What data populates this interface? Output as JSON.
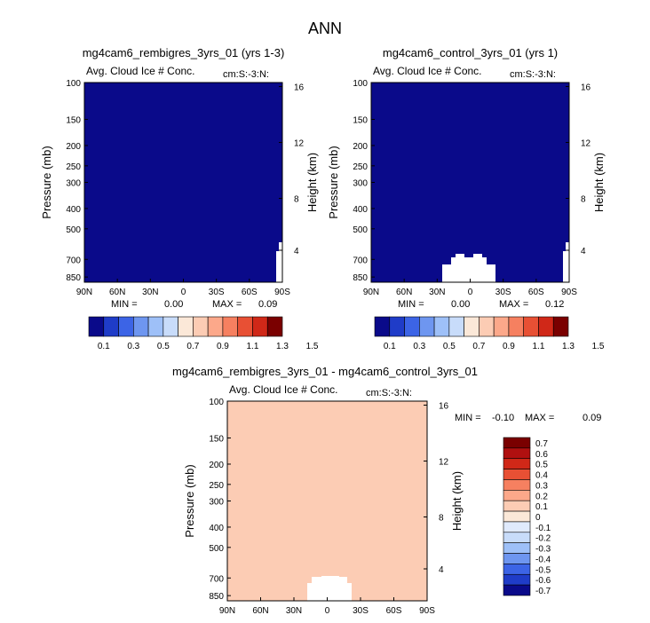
{
  "title": "ANN",
  "colors": {
    "cmap_abs": [
      "#0a0a8a",
      "#1f3cc8",
      "#3c64e6",
      "#6e96f0",
      "#9ec0f8",
      "#c8dcfa",
      "#fbe8d8",
      "#fcccb4",
      "#fca88a",
      "#f68060",
      "#e85034",
      "#d02818",
      "#7a0000"
    ],
    "cmap_diff": [
      "#0a0a8a",
      "#1f3cc8",
      "#3c64e6",
      "#6e96f0",
      "#9ec0f8",
      "#c8dcfa",
      "#fbe8d8",
      "#fcccb4",
      "#fca88a",
      "#f68060",
      "#e85034",
      "#d02818",
      "#7a0000"
    ],
    "white_region": "#ffffff"
  },
  "chart_data": [
    {
      "type": "heatmap",
      "title": "mg4cam6_rembigres_3yrs_01 (yrs 1-3)",
      "subtitle": "Avg. Cloud Ice # Conc.",
      "units": "cm:S:-3:N:",
      "xlabel": "",
      "ylabel": "Pressure (mb)",
      "ylabel_right": "Height (km)",
      "x_ticks": [
        "90N",
        "60N",
        "30N",
        "0",
        "30S",
        "60S",
        "90S"
      ],
      "y_ticks": [
        "100",
        "150",
        "200",
        "250",
        "300",
        "400",
        "500",
        "700",
        "850"
      ],
      "y_ticks_right": [
        "16",
        "12",
        "8",
        "4"
      ],
      "fill_value": 0.05,
      "min_label": "MIN =",
      "min": "0.00",
      "max_label": "MAX =",
      "max": "0.09",
      "colorbar_labels": [
        "0.1",
        "0.3",
        "0.5",
        "0.7",
        "0.9",
        "1.1",
        "1.3",
        "1.5"
      ]
    },
    {
      "type": "heatmap",
      "title": "mg4cam6_control_3yrs_01 (yrs 1)",
      "subtitle": "Avg. Cloud Ice # Conc.",
      "units": "cm:S:-3:N:",
      "xlabel": "",
      "ylabel": "Pressure (mb)",
      "ylabel_right": "Height (km)",
      "x_ticks": [
        "90N",
        "60N",
        "30N",
        "0",
        "30S",
        "60S",
        "90S"
      ],
      "y_ticks": [
        "100",
        "150",
        "200",
        "250",
        "300",
        "400",
        "500",
        "700",
        "850"
      ],
      "y_ticks_right": [
        "16",
        "12",
        "8",
        "4"
      ],
      "fill_value": 0.05,
      "min_label": "MIN =",
      "min": "0.00",
      "max_label": "MAX =",
      "max": "0.12",
      "colorbar_labels": [
        "0.1",
        "0.3",
        "0.5",
        "0.7",
        "0.9",
        "1.1",
        "1.3",
        "1.5"
      ]
    },
    {
      "type": "heatmap",
      "title": "mg4cam6_rembigres_3yrs_01 - mg4cam6_control_3yrs_01",
      "subtitle": "Avg. Cloud Ice # Conc.",
      "units": "cm:S:-3:N:",
      "xlabel": "",
      "ylabel": "Pressure (mb)",
      "ylabel_right": "Height (km)",
      "x_ticks": [
        "90N",
        "60N",
        "30N",
        "0",
        "30S",
        "60S",
        "90S"
      ],
      "y_ticks": [
        "100",
        "150",
        "200",
        "250",
        "300",
        "400",
        "500",
        "700",
        "850"
      ],
      "y_ticks_right": [
        "16",
        "12",
        "8",
        "4"
      ],
      "fill_value": 0.0,
      "min_label": "MIN =",
      "min": "-0.10",
      "max_label": "MAX =",
      "max": "0.09",
      "colorbar_labels": [
        "0.7",
        "0.6",
        "0.5",
        "0.4",
        "0.3",
        "0.2",
        "0.1",
        "0",
        "-0.1",
        "-0.2",
        "-0.3",
        "-0.4",
        "-0.5",
        "-0.6",
        "-0.7"
      ]
    }
  ]
}
